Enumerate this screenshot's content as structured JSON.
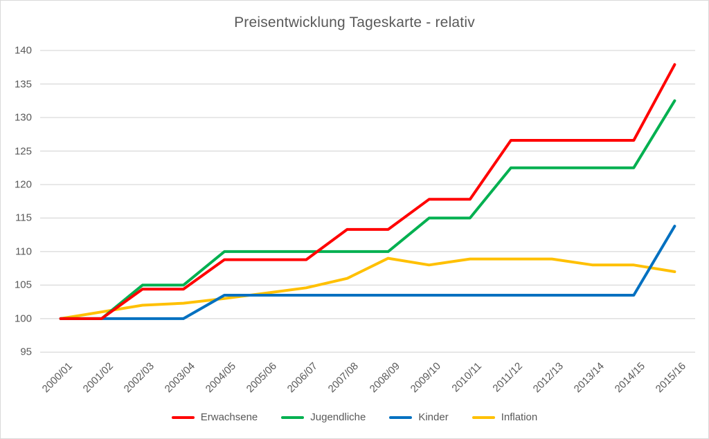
{
  "chart_data": {
    "type": "line",
    "title": "Preisentwicklung Tageskarte - relativ",
    "categories": [
      "2000/01",
      "2001/02",
      "2002/03",
      "2003/04",
      "2004/05",
      "2005/06",
      "2006/07",
      "2007/08",
      "2008/09",
      "2009/10",
      "2010/11",
      "2011/12",
      "2012/13",
      "2013/14",
      "2014/15",
      "2015/16"
    ],
    "series": [
      {
        "name": "Erwachsene",
        "color": "#ff0000",
        "values": [
          100,
          100,
          104.4,
          104.4,
          108.8,
          108.8,
          108.8,
          113.3,
          113.3,
          117.8,
          117.8,
          126.6,
          126.6,
          126.6,
          126.6,
          137.9
        ]
      },
      {
        "name": "Jugendliche",
        "color": "#00b050",
        "values": [
          100,
          100,
          105,
          105,
          110,
          110,
          110,
          110,
          110,
          115,
          115,
          122.5,
          122.5,
          122.5,
          122.5,
          132.5
        ]
      },
      {
        "name": "Kinder",
        "color": "#0070c0",
        "values": [
          100,
          100,
          100,
          100,
          103.5,
          103.5,
          103.5,
          103.5,
          103.5,
          103.5,
          103.5,
          103.5,
          103.5,
          103.5,
          103.5,
          113.8
        ]
      },
      {
        "name": "Inflation",
        "color": "#ffc000",
        "values": [
          100,
          101,
          102,
          102.3,
          103,
          103.8,
          104.6,
          106,
          109,
          108,
          108.9,
          108.9,
          108.9,
          108,
          108,
          107
        ]
      }
    ],
    "yticks": [
      95,
      100,
      105,
      110,
      115,
      120,
      125,
      130,
      135,
      140
    ],
    "ylim": [
      95,
      140
    ],
    "grid": true,
    "legend_position": "bottom",
    "colors": {
      "text": "#595959",
      "gridline": "#d9d9d9",
      "border": "#d9d9d9"
    }
  }
}
